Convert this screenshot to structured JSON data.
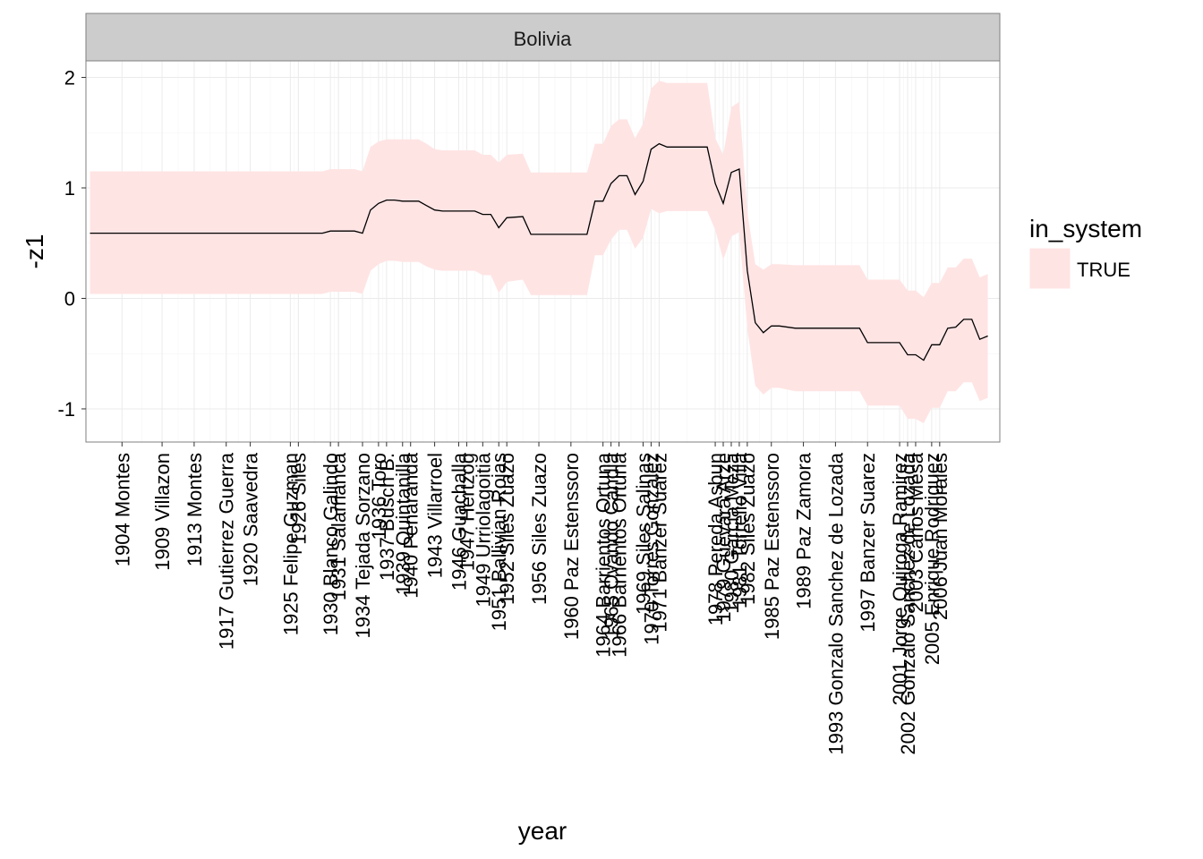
{
  "chart_data": {
    "type": "line",
    "facet_label": "Bolivia",
    "xlabel": "year",
    "ylabel": "-z1",
    "ylim": [
      -1.3,
      2.15
    ],
    "xlim": [
      1899.5,
      2013.5
    ],
    "yticks": [
      -1,
      0,
      1,
      2
    ],
    "grid": true,
    "legend": {
      "title": "in_system",
      "position": "right",
      "entries": [
        {
          "label": "TRUE",
          "color": "#ffe4e4"
        }
      ]
    },
    "colors": {
      "ribbon": "#ffe4e4",
      "line": "#000000",
      "strip": "#cccccc",
      "panel": "#ffffff",
      "grid": "#ebebeb"
    },
    "x_tick_labels": [
      {
        "x": 1904,
        "label": "1904 Montes"
      },
      {
        "x": 1909,
        "label": "1909 Villazon"
      },
      {
        "x": 1913,
        "label": "1913 Montes"
      },
      {
        "x": 1917,
        "label": "1917 Gutierrez Guerra"
      },
      {
        "x": 1920,
        "label": "1920 Saavedra"
      },
      {
        "x": 1925,
        "label": "1925 Felipe Guzman"
      },
      {
        "x": 1926,
        "label": "1926 Siles"
      },
      {
        "x": 1930,
        "label": "1930 Blanco Galindo"
      },
      {
        "x": 1931,
        "label": "1931 Salamanca"
      },
      {
        "x": 1934,
        "label": "1934 Tejada Sorzano"
      },
      {
        "x": 1936,
        "label": "1936 Toro"
      },
      {
        "x": 1937,
        "label": "1937 Busch B."
      },
      {
        "x": 1939,
        "label": "1939 Quintanilla"
      },
      {
        "x": 1940,
        "label": "1940 Penaranda"
      },
      {
        "x": 1943,
        "label": "1943 Villarroel"
      },
      {
        "x": 1946,
        "label": "1946 Guachalla"
      },
      {
        "x": 1947,
        "label": "1947 Hertzog"
      },
      {
        "x": 1949,
        "label": "1949 Urriolagoitia"
      },
      {
        "x": 1951,
        "label": "1951 Ballivian Rojas"
      },
      {
        "x": 1952,
        "label": "1952 Siles Zuazo"
      },
      {
        "x": 1956,
        "label": "1956 Siles Zuazo"
      },
      {
        "x": 1960,
        "label": "1960 Paz Estenssoro"
      },
      {
        "x": 1964,
        "label": "1964 Barrientos Ortuna"
      },
      {
        "x": 1965,
        "label": "1965 Ovando Candia"
      },
      {
        "x": 1966,
        "label": "1966 Barrientos Ortuna"
      },
      {
        "x": 1969,
        "label": "1969 Siles Salinas"
      },
      {
        "x": 1970,
        "label": "1970 Torres Gonzalez"
      },
      {
        "x": 1971,
        "label": "1971 Banzer Suarez"
      },
      {
        "x": 1978,
        "label": "1978 Pereda Asbun"
      },
      {
        "x": 1979,
        "label": "1979 Guevara Arze"
      },
      {
        "x": 1980,
        "label": "1980 Garcia Meza"
      },
      {
        "x": 1981,
        "label": "1981 Torrelio Villa"
      },
      {
        "x": 1982,
        "label": "1982 Siles Zuazo"
      },
      {
        "x": 1985,
        "label": "1985 Paz Estenssoro"
      },
      {
        "x": 1989,
        "label": "1989 Paz Zamora"
      },
      {
        "x": 1993,
        "label": "1993 Gonzalo Sanchez de Lozada"
      },
      {
        "x": 1997,
        "label": "1997 Banzer Suarez"
      },
      {
        "x": 2001,
        "label": "2001 Jorge Quiroga Ramirez"
      },
      {
        "x": 2002,
        "label": "2002 Gonzalo Sanchez de Lozada"
      },
      {
        "x": 2003,
        "label": "2003 Carlos Mesa"
      },
      {
        "x": 2005,
        "label": "2005 Enrique Rodriguez"
      },
      {
        "x": 2006,
        "label": "2006 Juan Morales"
      }
    ],
    "series": [
      {
        "name": "",
        "x": [
          1900,
          1929,
          1930,
          1933,
          1934,
          1935,
          1936,
          1937,
          1938,
          1939,
          1940,
          1941,
          1942,
          1943,
          1944,
          1946,
          1948,
          1949,
          1950,
          1951,
          1952,
          1954,
          1955,
          1958,
          1962,
          1963,
          1964,
          1965,
          1966,
          1967,
          1968,
          1969,
          1970,
          1971,
          1972,
          1974,
          1977,
          1978,
          1979,
          1980,
          1981,
          1982,
          1983,
          1984,
          1985,
          1986,
          1988,
          1990,
          1996,
          1997,
          2001,
          2002,
          2003,
          2004,
          2005,
          2006,
          2007,
          2008,
          2009,
          2010,
          2011,
          2012
        ],
        "y": [
          0.59,
          0.59,
          0.61,
          0.61,
          0.59,
          0.8,
          0.86,
          0.89,
          0.89,
          0.88,
          0.88,
          0.88,
          0.84,
          0.8,
          0.79,
          0.79,
          0.79,
          0.76,
          0.76,
          0.64,
          0.73,
          0.74,
          0.58,
          0.58,
          0.58,
          0.88,
          0.88,
          1.04,
          1.11,
          1.11,
          0.94,
          1.06,
          1.35,
          1.4,
          1.37,
          1.37,
          1.37,
          1.04,
          0.86,
          1.14,
          1.17,
          0.25,
          -0.22,
          -0.31,
          -0.25,
          -0.25,
          -0.27,
          -0.27,
          -0.27,
          -0.4,
          -0.4,
          -0.51,
          -0.51,
          -0.56,
          -0.42,
          -0.42,
          -0.27,
          -0.26,
          -0.19,
          -0.19,
          -0.37,
          -0.34
        ],
        "lower": [
          0.04,
          0.04,
          0.06,
          0.06,
          0.04,
          0.25,
          0.31,
          0.34,
          0.34,
          0.33,
          0.33,
          0.33,
          0.29,
          0.26,
          0.25,
          0.25,
          0.25,
          0.21,
          0.21,
          0.05,
          0.15,
          0.17,
          0.03,
          0.03,
          0.03,
          0.39,
          0.39,
          0.53,
          0.62,
          0.62,
          0.45,
          0.55,
          0.81,
          0.77,
          0.79,
          0.79,
          0.79,
          0.62,
          0.35,
          0.56,
          0.6,
          -0.27,
          -0.79,
          -0.87,
          -0.81,
          -0.81,
          -0.84,
          -0.84,
          -0.84,
          -0.97,
          -0.97,
          -1.09,
          -1.09,
          -1.13,
          -0.99,
          -0.99,
          -0.84,
          -0.84,
          -0.76,
          -0.76,
          -0.93,
          -0.9
        ],
        "upper": [
          1.15,
          1.15,
          1.17,
          1.17,
          1.15,
          1.37,
          1.42,
          1.44,
          1.44,
          1.44,
          1.44,
          1.44,
          1.4,
          1.35,
          1.34,
          1.34,
          1.34,
          1.3,
          1.3,
          1.23,
          1.3,
          1.31,
          1.14,
          1.14,
          1.14,
          1.4,
          1.4,
          1.56,
          1.62,
          1.62,
          1.45,
          1.58,
          1.9,
          1.97,
          1.95,
          1.95,
          1.95,
          1.45,
          1.3,
          1.73,
          1.78,
          0.78,
          0.31,
          0.26,
          0.31,
          0.31,
          0.3,
          0.3,
          0.3,
          0.17,
          0.17,
          0.07,
          0.07,
          0.01,
          0.14,
          0.14,
          0.28,
          0.28,
          0.36,
          0.36,
          0.19,
          0.22
        ]
      }
    ]
  }
}
